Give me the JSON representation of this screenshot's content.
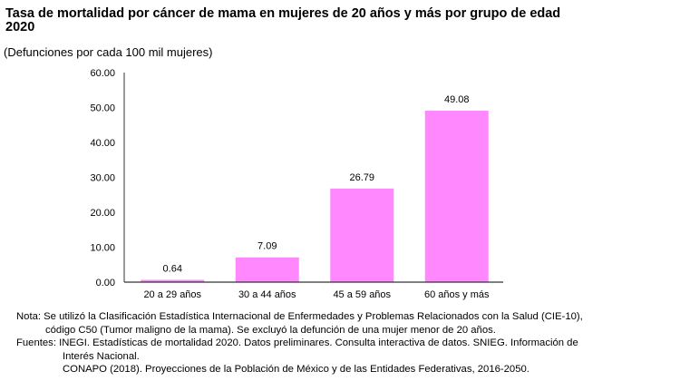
{
  "chart_data": {
    "type": "bar",
    "title": "Tasa de mortalidad por cáncer de mama en mujeres de 20 años y más por grupo de edad",
    "title_line2": "2020",
    "subtitle": "(Defunciones por cada 100 mil mujeres)",
    "categories": [
      "20 a 29 años",
      "30 a 44 años",
      "45 a 59 años",
      "60 años y más"
    ],
    "values": [
      0.64,
      7.09,
      26.79,
      49.08
    ],
    "data_labels": [
      "0.64",
      "7.09",
      "26.79",
      "49.08"
    ],
    "ylim": [
      0,
      60
    ],
    "yticks": [
      "0.00",
      "10.00",
      "20.00",
      "30.00",
      "40.00",
      "50.00",
      "60.00"
    ],
    "grid": false,
    "bar_color": "#FF88FF",
    "xlabel": "",
    "ylabel": ""
  },
  "notes": {
    "nota_1": "Nota: Se utilizó la Clasificación Estadística Internacional de Enfermedades y Problemas Relacionados con la Salud (CIE-10),",
    "nota_2": "código C50 (Tumor maligno de la mama). Se excluyó la defunción de una mujer menor de 20 años.",
    "fuentes_1": "Fuentes: INEGI. Estadísticas de mortalidad 2020. Datos preliminares. Consulta interactiva de datos. SNIEG. Información de",
    "fuentes_2": "Interés Nacional.",
    "fuentes_3": "CONAPO (2018). Proyecciones de la Población de México y de las Entidades Federativas, 2016-2050."
  }
}
